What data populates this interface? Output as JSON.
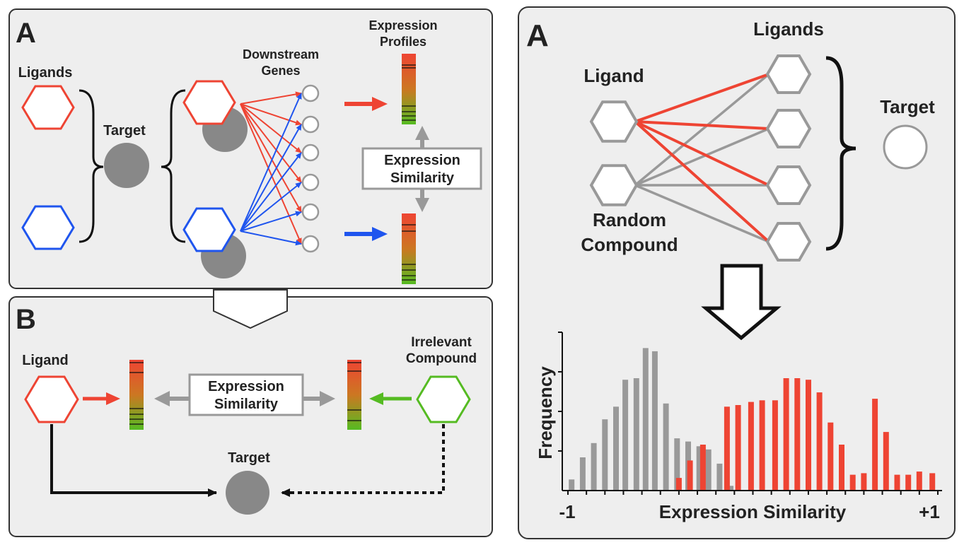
{
  "colors": {
    "panel_bg": "#eeeeee",
    "panel_border": "#333333",
    "red": "#ee4433",
    "blue": "#1f55ee",
    "green": "#55bb22",
    "gray": "#999999",
    "dark_gray": "#888888"
  },
  "panel_a": {
    "letter": "A",
    "ligands_label": "Ligands",
    "target_label": "Target",
    "downstream_line1": "Downstream",
    "downstream_line2": "Genes",
    "profiles_line1": "Expression",
    "profiles_line2": "Profiles",
    "similarity_line1": "Expression",
    "similarity_line2": "Similarity"
  },
  "panel_b": {
    "letter": "B",
    "ligand_label": "Ligand",
    "irrelevant_line1": "Irrelevant",
    "irrelevant_line2": "Compound",
    "similarity_line1": "Expression",
    "similarity_line2": "Similarity",
    "target_label": "Target"
  },
  "panel_right": {
    "letter": "A",
    "ligand_label": "Ligand",
    "ligands_label": "Ligands",
    "target_label": "Target",
    "random_line1": "Random",
    "random_line2": "Compound"
  },
  "chart_data": {
    "type": "bar",
    "xlabel": "Expression Similarity",
    "ylabel": "Frequency",
    "x_tick_labels": [
      "-1",
      "+1"
    ],
    "xlim": [
      -1,
      1
    ],
    "ylim": [
      0,
      1
    ],
    "series": [
      {
        "color": "#999999",
        "x": [
          -0.98,
          -0.92,
          -0.86,
          -0.8,
          -0.74,
          -0.69,
          -0.63,
          -0.58,
          -0.53,
          -0.47,
          -0.41,
          -0.35,
          -0.29,
          -0.24,
          -0.18,
          -0.12,
          -0.06
        ],
        "values": [
          0.07,
          0.21,
          0.3,
          0.45,
          0.53,
          0.7,
          0.71,
          0.9,
          0.88,
          0.55,
          0.33,
          0.31,
          0.28,
          0.26,
          0.17,
          0.03,
          0.0
        ]
      },
      {
        "color": "#ee4433",
        "x": [
          -0.4,
          -0.34,
          -0.27,
          -0.21,
          -0.14,
          -0.08,
          -0.01,
          0.05,
          0.12,
          0.18,
          0.24,
          0.3,
          0.36,
          0.42,
          0.48,
          0.54,
          0.6,
          0.66,
          0.72,
          0.78,
          0.84,
          0.9,
          0.97
        ],
        "values": [
          0.08,
          0.19,
          0.29,
          0.0,
          0.53,
          0.54,
          0.56,
          0.57,
          0.57,
          0.71,
          0.71,
          0.7,
          0.62,
          0.43,
          0.29,
          0.1,
          0.11,
          0.58,
          0.37,
          0.1,
          0.1,
          0.12,
          0.11
        ]
      }
    ]
  }
}
